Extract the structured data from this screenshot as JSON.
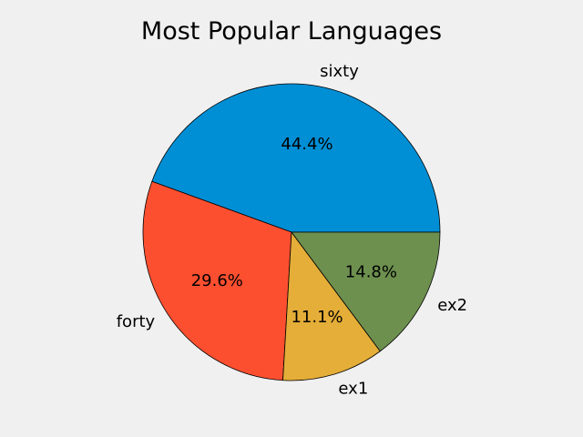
{
  "chart_data": {
    "type": "pie",
    "title": "Most Popular Languages",
    "slices": [
      {
        "label": "sixty",
        "value": 60,
        "percent_label": "44.4%",
        "color": "#008fd5"
      },
      {
        "label": "forty",
        "value": 40,
        "percent_label": "29.6%",
        "color": "#fc4f30"
      },
      {
        "label": "ex1",
        "value": 15,
        "percent_label": "11.1%",
        "color": "#e5ae38"
      },
      {
        "label": "ex2",
        "value": 20,
        "percent_label": "14.8%",
        "color": "#6d904f"
      }
    ],
    "start_angle_deg": 0,
    "direction": "counterclockwise",
    "legend": "none"
  }
}
